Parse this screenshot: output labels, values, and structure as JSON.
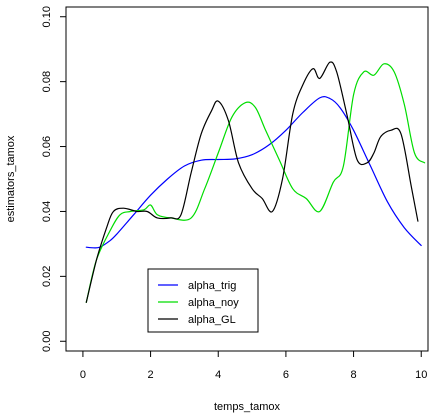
{
  "chart_data": {
    "type": "line",
    "title": "",
    "xlabel": "temps_tamox",
    "ylabel": "estimators_tamox",
    "xlim": [
      -0.5,
      10.2
    ],
    "ylim": [
      -0.003,
      0.103
    ],
    "grid": false,
    "legend_position": "bottom-left",
    "x_ticks": [
      0,
      2,
      4,
      6,
      8,
      10
    ],
    "x_tick_labels": [
      "0",
      "2",
      "4",
      "6",
      "8",
      "10"
    ],
    "y_ticks": [
      0.0,
      0.02,
      0.04,
      0.06,
      0.08,
      0.1
    ],
    "y_tick_labels": [
      "0.00",
      "0.02",
      "0.04",
      "0.06",
      "0.08",
      "0.10"
    ],
    "series": [
      {
        "name": "alpha_trig",
        "color": "#0000ff",
        "x": [
          0.1,
          0.3,
          0.5,
          0.8,
          1.0,
          1.5,
          2.0,
          2.5,
          3.0,
          3.5,
          4.0,
          4.5,
          5.0,
          5.5,
          6.0,
          6.5,
          7.0,
          7.3,
          7.6,
          8.0,
          8.5,
          9.0,
          9.5,
          10.0
        ],
        "y": [
          0.029,
          0.0288,
          0.029,
          0.031,
          0.033,
          0.039,
          0.045,
          0.05,
          0.054,
          0.0558,
          0.056,
          0.0562,
          0.0575,
          0.0605,
          0.065,
          0.0705,
          0.075,
          0.0748,
          0.072,
          0.065,
          0.054,
          0.043,
          0.035,
          0.0295
        ]
      },
      {
        "name": "alpha_noy",
        "color": "#00dd00",
        "x": [
          0.1,
          0.4,
          0.8,
          1.1,
          1.4,
          1.8,
          2.0,
          2.2,
          2.6,
          3.2,
          3.6,
          4.0,
          4.4,
          4.8,
          5.1,
          5.4,
          5.8,
          6.2,
          6.6,
          7.0,
          7.4,
          7.7,
          8.0,
          8.3,
          8.6,
          8.9,
          9.2,
          9.5,
          9.8,
          10.1
        ],
        "y": [
          0.012,
          0.025,
          0.034,
          0.039,
          0.04,
          0.0405,
          0.042,
          0.039,
          0.038,
          0.038,
          0.047,
          0.058,
          0.069,
          0.0735,
          0.072,
          0.065,
          0.056,
          0.047,
          0.044,
          0.04,
          0.049,
          0.054,
          0.076,
          0.083,
          0.082,
          0.0855,
          0.083,
          0.073,
          0.058,
          0.055
        ]
      },
      {
        "name": "alpha_GL",
        "color": "#000000",
        "x": [
          0.1,
          0.4,
          0.7,
          0.9,
          1.2,
          1.6,
          1.9,
          2.2,
          2.6,
          2.9,
          3.2,
          3.5,
          3.8,
          4.0,
          4.3,
          4.6,
          5.0,
          5.3,
          5.6,
          5.9,
          6.2,
          6.5,
          6.8,
          7.0,
          7.3,
          7.5,
          7.8,
          8.1,
          8.4,
          8.6,
          8.8,
          9.1,
          9.4,
          9.7,
          9.9
        ],
        "y": [
          0.012,
          0.025,
          0.035,
          0.04,
          0.041,
          0.04,
          0.04,
          0.038,
          0.038,
          0.039,
          0.052,
          0.064,
          0.071,
          0.074,
          0.068,
          0.055,
          0.047,
          0.044,
          0.04,
          0.05,
          0.07,
          0.079,
          0.084,
          0.081,
          0.086,
          0.083,
          0.07,
          0.056,
          0.055,
          0.058,
          0.063,
          0.065,
          0.064,
          0.048,
          0.037
        ]
      }
    ]
  }
}
